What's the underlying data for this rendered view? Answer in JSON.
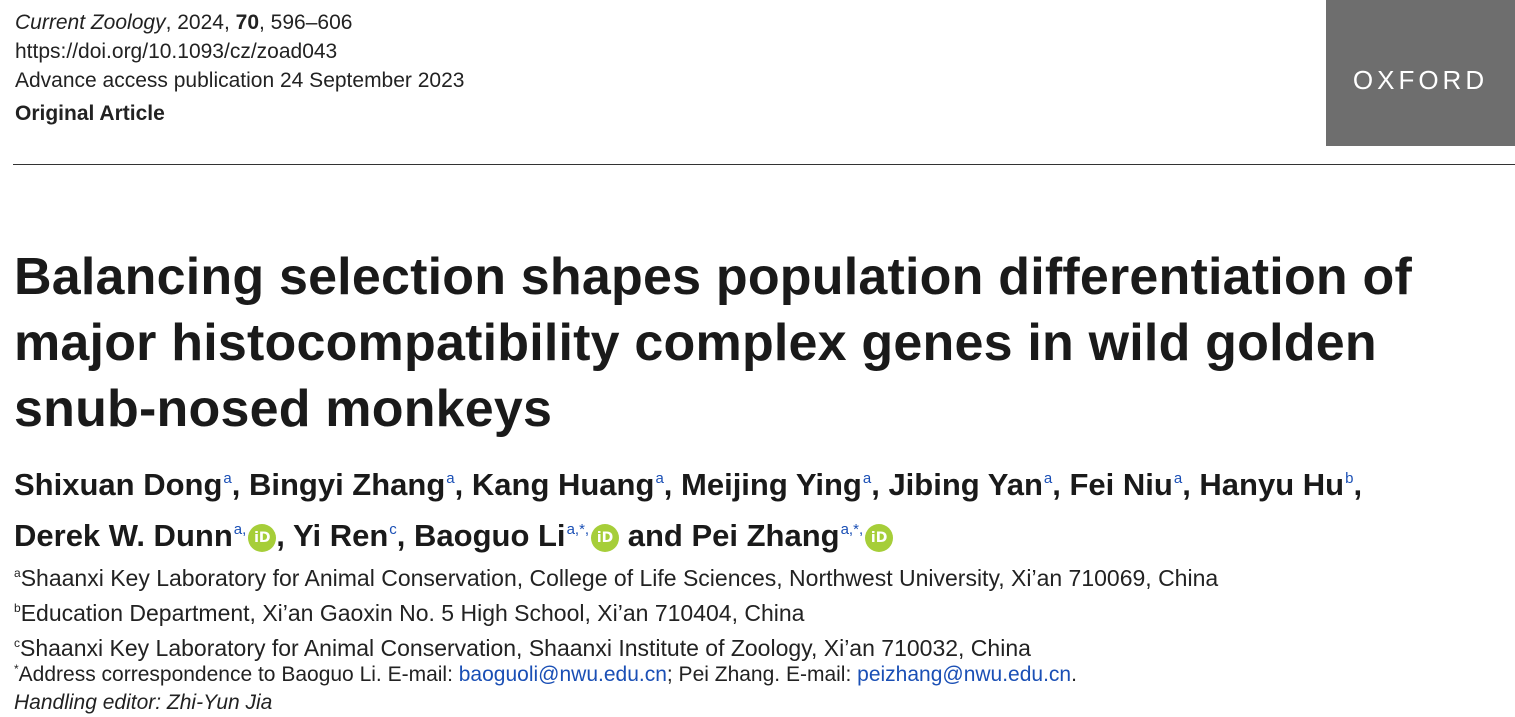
{
  "meta": {
    "journal": "Current Zoology",
    "year_sep": ", 2024, ",
    "volume": "70",
    "pages": ", 596–606",
    "doi": "https://doi.org/10.1093/cz/zoad043",
    "advance_access": "Advance access publication 24 September 2023",
    "article_type": "Original Article"
  },
  "logo": {
    "text": "OXFORD"
  },
  "title": "Balancing selection shapes population differentiation of major histocompatibility complex genes in wild golden snub-nosed monkeys",
  "authors": [
    {
      "name": "Shixuan Dong",
      "sup": "a"
    },
    {
      "name": "Bingyi Zhang",
      "sup": "a"
    },
    {
      "name": "Kang Huang",
      "sup": "a"
    },
    {
      "name": "Meijing Ying",
      "sup": "a"
    },
    {
      "name": "Jibing Yan",
      "sup": "a"
    },
    {
      "name": "Fei Niu",
      "sup": "a"
    },
    {
      "name": "Hanyu Hu",
      "sup": "b"
    },
    {
      "name": "Derek W. Dunn",
      "sup": "a,"
    },
    {
      "name": "Yi Ren",
      "sup": "c"
    },
    {
      "name": "Baoguo Li",
      "sup": "a,*,"
    },
    {
      "name": "Pei Zhang",
      "sup": "a,*,"
    }
  ],
  "authors_and": "and",
  "orcid_label": "iD",
  "affiliations": [
    {
      "sup": "a",
      "text": "Shaanxi Key Laboratory for Animal Conservation, College of Life Sciences, Northwest University, Xi’an 710069, China"
    },
    {
      "sup": "b",
      "text": "Education Department, Xi’an Gaoxin No. 5 High School, Xi’an 710404, China"
    },
    {
      "sup": "c",
      "text": "Shaanxi Key Laboratory for Animal Conservation, Shaanxi Institute of Zoology, Xi’an 710032, China"
    }
  ],
  "correspondence": {
    "sup": "*",
    "prefix": "Address correspondence to Baoguo Li. E-mail: ",
    "email1": "baoguoli@nwu.edu.cn",
    "middle": "; Pei Zhang. E-mail: ",
    "email2": "peizhang@nwu.edu.cn",
    "suffix": "."
  },
  "handling_editor": "Handling editor: Zhi-Yun Jia",
  "colors": {
    "link": "#1a4fb5",
    "orcid": "#a6ce39",
    "logo_bg": "#6e6e6e"
  }
}
